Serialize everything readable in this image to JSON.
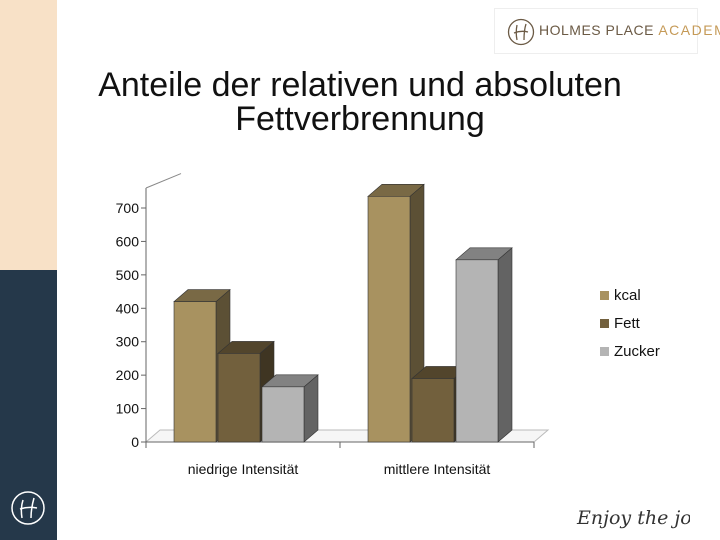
{
  "slide": {
    "title_line1": "Anteile der relativen und absoluten",
    "title_line2": "Fettverbrennung"
  },
  "branding": {
    "logo_word1": "HOLMES PLACE",
    "logo_word2": "ACADEMY",
    "slogan": "Enjoy the journey"
  },
  "colors": {
    "side_top": "#f8e1c7",
    "side_bottom": "#25384a",
    "kcal": "#a89260",
    "fett": "#72603d",
    "zucker": "#b4b4b4"
  },
  "chart_data": {
    "type": "bar",
    "style": "3d-clustered",
    "title": "",
    "xlabel": "",
    "ylabel": "",
    "categories": [
      "niedrige Intensität",
      "mittlere Intensität"
    ],
    "series": [
      {
        "name": "kcal",
        "values": [
          420,
          735
        ]
      },
      {
        "name": "Fett",
        "values": [
          265,
          190
        ]
      },
      {
        "name": "Zucker",
        "values": [
          165,
          545
        ]
      }
    ],
    "ylim": [
      0,
      700
    ],
    "yticks": [
      0,
      100,
      200,
      300,
      400,
      500,
      600,
      700
    ],
    "legend_position": "right"
  }
}
